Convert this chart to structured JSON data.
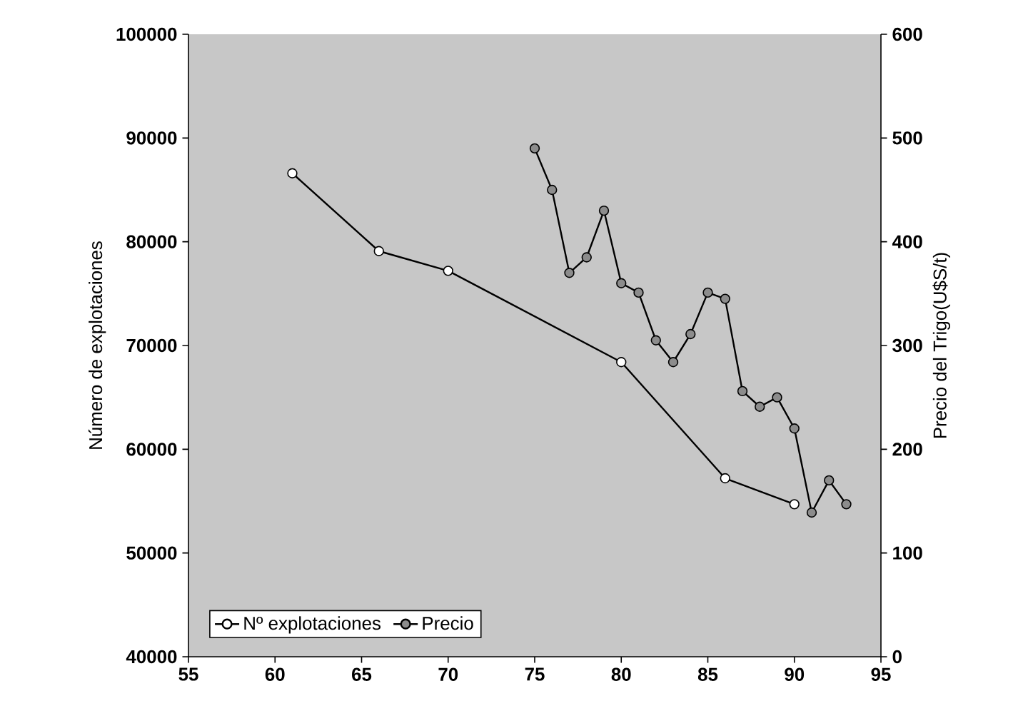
{
  "chart_data": {
    "type": "line",
    "xlabel": null,
    "ylabel": "Número de  explotaciones",
    "y2label": "Precio del Trigo(U$S/t)",
    "series": [
      {
        "name": "Nº explotaciones",
        "color": "#000000",
        "x": [
          61,
          66,
          70,
          80,
          86,
          90
        ],
        "values": [
          86600,
          79100,
          77200,
          68400,
          57200,
          54700
        ]
      },
      {
        "name": "Precio",
        "color": "#000000",
        "axis": "y2",
        "x": [
          75,
          76,
          77,
          78,
          79,
          80,
          81,
          82,
          83,
          84,
          85,
          86,
          87,
          88,
          89,
          90,
          91,
          92,
          93
        ],
        "values": [
          490,
          450,
          370,
          385,
          430,
          360,
          351,
          305,
          284,
          311,
          351,
          345,
          256,
          241,
          250,
          220,
          139,
          170,
          147
        ]
      }
    ],
    "xlim": [
      55,
      95
    ],
    "xticks": [
      55,
      60,
      65,
      70,
      75,
      80,
      85,
      90,
      95
    ],
    "ylim": [
      40000,
      100000
    ],
    "yticks": [
      40000,
      50000,
      60000,
      70000,
      80000,
      90000,
      100000
    ],
    "y2lim": [
      0,
      600
    ],
    "y2ticks": [
      0,
      100,
      200,
      300,
      400,
      500,
      600
    ],
    "marker": "circle",
    "line_style": "solid",
    "grid": false,
    "legend": "bottom left"
  }
}
